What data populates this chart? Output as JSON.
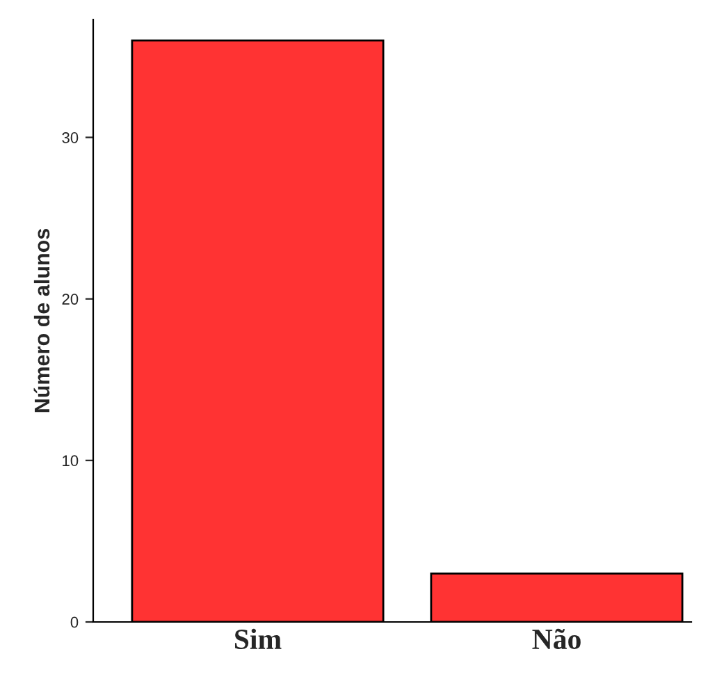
{
  "chart_data": {
    "type": "bar",
    "ylabel": "Número de alunos",
    "categories": [
      "Sim",
      "Não"
    ],
    "values": [
      36,
      3
    ],
    "color": "#ff3333",
    "ylim": [
      0,
      37.3
    ],
    "yticks": [
      0,
      10,
      20,
      30
    ],
    "grid": false
  }
}
